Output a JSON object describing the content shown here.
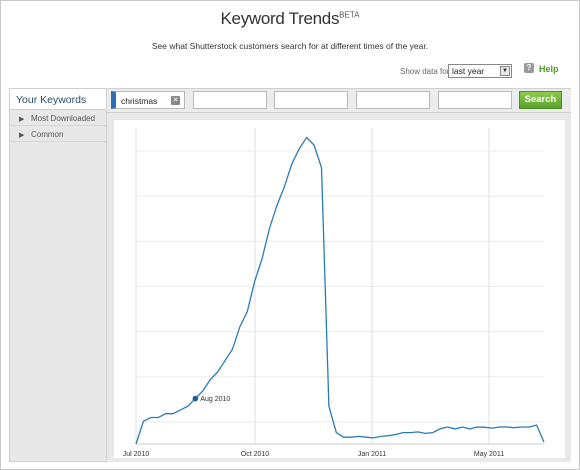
{
  "header": {
    "title": "Keyword Trends",
    "badge": "BETA",
    "subtitle": "See what Shutterstock customers search for at different times of the year."
  },
  "controls": {
    "show_data_label": "Show data for:",
    "period_value": "last year",
    "help_label": "Help"
  },
  "sidebar": {
    "heading": "Your Keywords",
    "items": [
      {
        "label": "Most Downloaded"
      },
      {
        "label": "Common"
      }
    ]
  },
  "keywords": {
    "fields": [
      "christmas",
      "",
      "",
      "",
      ""
    ],
    "search_label": "Search"
  },
  "chart_data": {
    "type": "line",
    "x_tick_labels": [
      "Jul 2010",
      "Oct 2010",
      "Jan 2011",
      "May 2011"
    ],
    "annotation": "Aug 2010",
    "grid": true,
    "series": [
      {
        "color": "#2a7ab8",
        "values": [
          0,
          0.06,
          0.07,
          0.07,
          0.08,
          0.08,
          0.09,
          0.1,
          0.12,
          0.14,
          0.17,
          0.19,
          0.22,
          0.25,
          0.31,
          0.35,
          0.43,
          0.49,
          0.57,
          0.63,
          0.68,
          0.74,
          0.78,
          0.81,
          0.79,
          0.73,
          0.1,
          0.03,
          0.018,
          0.018,
          0.02,
          0.018,
          0.016,
          0.02,
          0.022,
          0.025,
          0.03,
          0.03,
          0.032,
          0.028,
          0.03,
          0.04,
          0.045,
          0.04,
          0.045,
          0.04,
          0.045,
          0.044,
          0.042,
          0.045,
          0.045,
          0.043,
          0.045,
          0.045,
          0.05,
          0.005
        ]
      }
    ],
    "annotation_point_index": 8
  }
}
